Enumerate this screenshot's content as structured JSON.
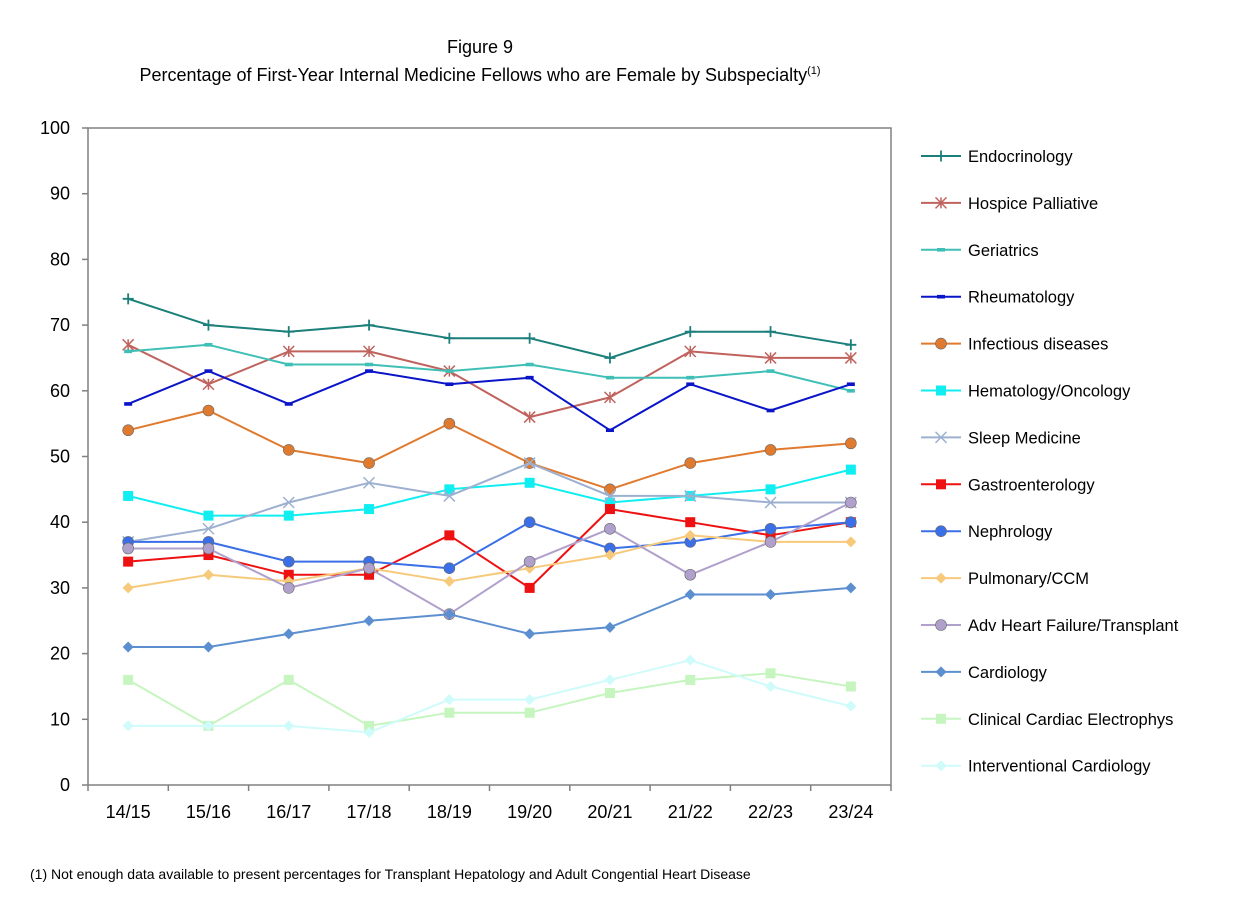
{
  "figure": {
    "label": "Figure 9",
    "title": "Percentage of First-Year Internal Medicine Fellows who are Female by Subspecialty",
    "title_note": "(1)",
    "footnote": "(1) Not enough data available to present  percentages for Transplant Hepatology and Adult Congential Heart Disease"
  },
  "chart_data": {
    "type": "line",
    "title": "Percentage of First-Year Internal Medicine Fellows who are Female by Subspecialty",
    "xlabel": "",
    "ylabel": "",
    "categories": [
      "14/15",
      "15/16",
      "16/17",
      "17/18",
      "18/19",
      "19/20",
      "20/21",
      "21/22",
      "22/23",
      "23/24"
    ],
    "ylim": [
      0,
      100
    ],
    "yticks": [
      0,
      10,
      20,
      30,
      40,
      50,
      60,
      70,
      80,
      90,
      100
    ],
    "grid": false,
    "legend_position": "right",
    "series": [
      {
        "name": "Endocrinology",
        "color": "#1B7F7A",
        "marker": "plus",
        "values": [
          74,
          70,
          69,
          70,
          68,
          68,
          65,
          69,
          69,
          67
        ]
      },
      {
        "name": "Hospice Palliative",
        "color": "#C0635E",
        "marker": "asterisk",
        "values": [
          67,
          61,
          66,
          66,
          63,
          56,
          59,
          66,
          65,
          65
        ]
      },
      {
        "name": "Geriatrics",
        "color": "#3FBFB5",
        "marker": "dash",
        "values": [
          66,
          67,
          64,
          64,
          63,
          64,
          62,
          62,
          63,
          60
        ]
      },
      {
        "name": "Rheumatology",
        "color": "#0A14C8",
        "marker": "dash",
        "values": [
          58,
          63,
          58,
          63,
          61,
          62,
          54,
          61,
          57,
          61
        ]
      },
      {
        "name": "Infectious diseases",
        "color": "#E07A2E",
        "marker": "circle",
        "values": [
          54,
          57,
          51,
          49,
          55,
          49,
          45,
          49,
          51,
          52
        ]
      },
      {
        "name": "Hematology/Oncology",
        "color": "#10EEF2",
        "marker": "square",
        "values": [
          44,
          41,
          41,
          42,
          45,
          46,
          43,
          44,
          45,
          48
        ]
      },
      {
        "name": "Sleep Medicine",
        "color": "#9DB0D0",
        "marker": "x",
        "values": [
          37,
          39,
          43,
          46,
          44,
          49,
          44,
          44,
          43,
          43
        ]
      },
      {
        "name": "Gastroenterology",
        "color": "#EE1111",
        "marker": "square",
        "values": [
          34,
          35,
          32,
          32,
          38,
          30,
          42,
          40,
          38,
          40
        ]
      },
      {
        "name": "Nephrology",
        "color": "#3A6FE8",
        "marker": "circle",
        "values": [
          37,
          37,
          34,
          34,
          33,
          40,
          36,
          37,
          39,
          40
        ]
      },
      {
        "name": "Pulmonary/CCM",
        "color": "#F7C97A",
        "marker": "diamond",
        "values": [
          30,
          32,
          31,
          33,
          31,
          33,
          35,
          38,
          37,
          37
        ]
      },
      {
        "name": "Adv Heart Failure/Transplant",
        "color": "#B0A0CC",
        "marker": "circle",
        "values": [
          36,
          36,
          30,
          33,
          26,
          34,
          39,
          32,
          37,
          43
        ]
      },
      {
        "name": "Cardiology",
        "color": "#5C8FD0",
        "marker": "diamond",
        "values": [
          21,
          21,
          23,
          25,
          26,
          23,
          24,
          29,
          29,
          30
        ]
      },
      {
        "name": "Clinical Cardiac Electrophys",
        "color": "#C6F5C0",
        "marker": "square",
        "values": [
          16,
          9,
          16,
          9,
          11,
          11,
          14,
          16,
          17,
          15
        ]
      },
      {
        "name": "Interventional Cardiology",
        "color": "#CFFBFB",
        "marker": "diamond",
        "values": [
          9,
          9,
          9,
          8,
          13,
          13,
          16,
          19,
          15,
          12
        ]
      }
    ]
  }
}
